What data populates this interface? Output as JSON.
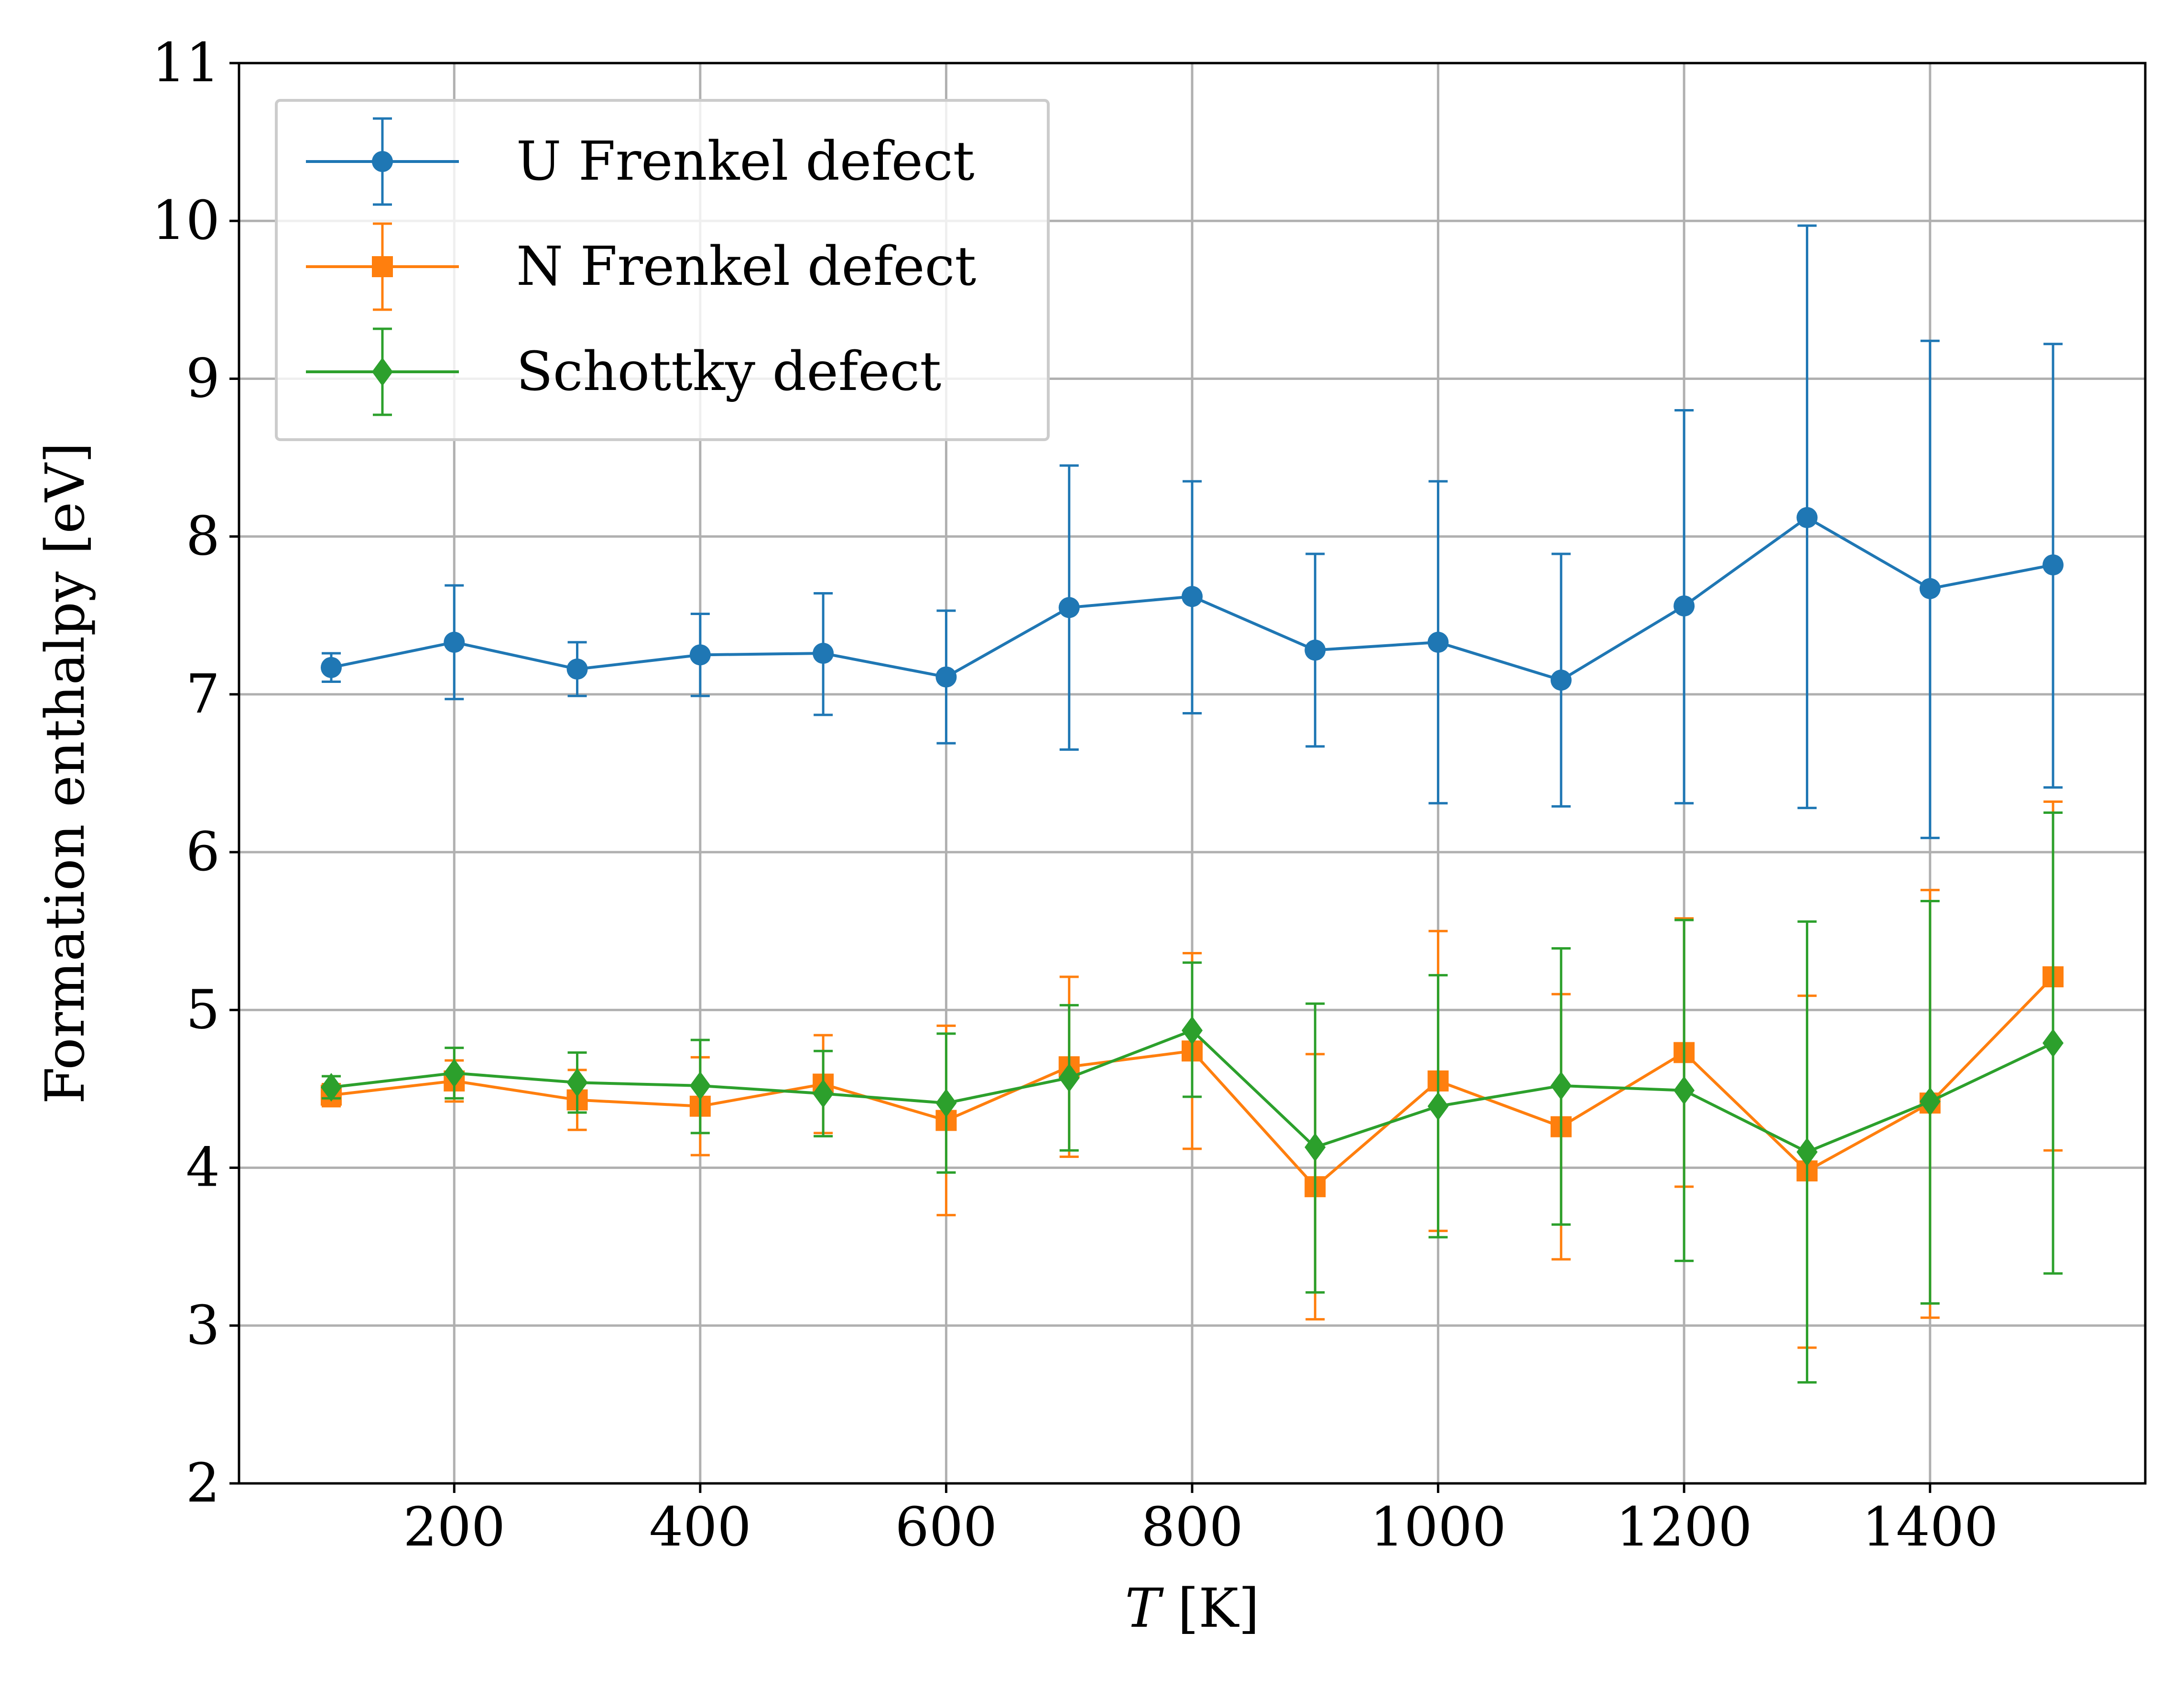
{
  "chart_data": {
    "type": "line",
    "title": "",
    "xlabel_italic": "T",
    "xlabel_rest": " [K]",
    "ylabel": "Formation enthalpy [eV]",
    "xlim": [
      25,
      1575
    ],
    "ylim": [
      2,
      11
    ],
    "xticks": [
      200,
      400,
      600,
      800,
      1000,
      1200,
      1400
    ],
    "yticks": [
      2,
      3,
      4,
      5,
      6,
      7,
      8,
      9,
      10,
      11
    ],
    "grid": true,
    "legend_position": "upper-left",
    "x": [
      100,
      200,
      300,
      400,
      500,
      600,
      700,
      800,
      900,
      1000,
      1100,
      1200,
      1300,
      1400,
      1500
    ],
    "series": [
      {
        "name": "U Frenkel defect",
        "color": "#1f77b4",
        "marker": "circle",
        "values": [
          7.17,
          7.33,
          7.16,
          7.25,
          7.26,
          7.11,
          7.55,
          7.62,
          7.28,
          7.33,
          7.09,
          7.56,
          8.12,
          7.67,
          7.82
        ],
        "err_low": [
          7.08,
          6.97,
          6.99,
          6.99,
          6.87,
          6.69,
          6.65,
          6.88,
          6.67,
          6.31,
          6.29,
          6.31,
          6.28,
          6.09,
          6.41
        ],
        "err_high": [
          7.26,
          7.69,
          7.33,
          7.51,
          7.64,
          7.53,
          8.45,
          8.35,
          7.89,
          8.35,
          7.89,
          8.8,
          9.97,
          9.24,
          9.22
        ]
      },
      {
        "name": "N Frenkel defect",
        "color": "#ff7f0e",
        "marker": "square",
        "values": [
          4.46,
          4.55,
          4.43,
          4.39,
          4.53,
          4.3,
          4.64,
          4.74,
          3.88,
          4.55,
          4.26,
          4.73,
          3.98,
          4.41,
          5.21
        ],
        "err_low": [
          4.39,
          4.42,
          4.24,
          4.08,
          4.22,
          3.7,
          4.07,
          4.12,
          3.04,
          3.6,
          3.42,
          3.88,
          2.86,
          3.05,
          4.11
        ],
        "err_high": [
          4.53,
          4.68,
          4.62,
          4.7,
          4.84,
          4.9,
          5.21,
          5.36,
          4.72,
          5.5,
          5.1,
          5.58,
          5.09,
          5.76,
          6.32
        ]
      },
      {
        "name": "Schottky defect",
        "color": "#2ca02c",
        "marker": "diamond",
        "values": [
          4.51,
          4.6,
          4.54,
          4.52,
          4.47,
          4.41,
          4.57,
          4.87,
          4.13,
          4.39,
          4.52,
          4.49,
          4.1,
          4.42,
          4.79
        ],
        "err_low": [
          4.44,
          4.44,
          4.35,
          4.22,
          4.2,
          3.97,
          4.11,
          4.45,
          3.21,
          3.56,
          3.64,
          3.41,
          2.64,
          3.14,
          3.33
        ],
        "err_high": [
          4.58,
          4.76,
          4.73,
          4.81,
          4.74,
          4.85,
          5.03,
          5.3,
          5.04,
          5.22,
          5.39,
          5.57,
          5.56,
          5.69,
          6.25
        ]
      }
    ]
  }
}
